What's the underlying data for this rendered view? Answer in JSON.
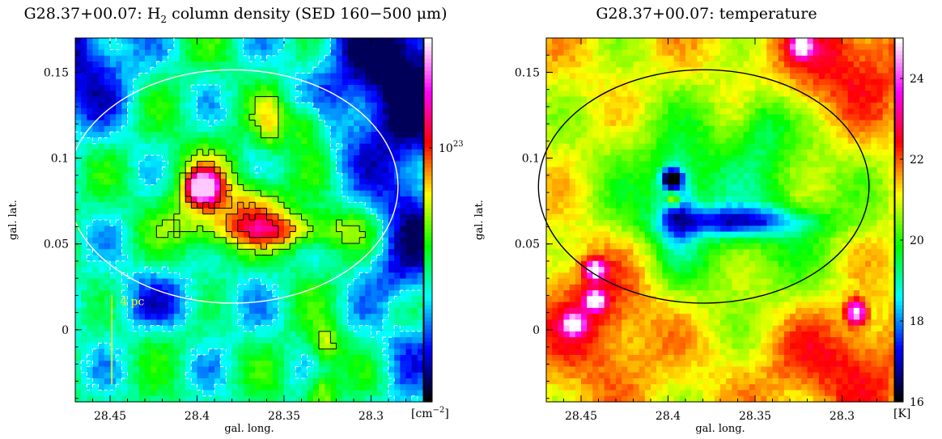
{
  "chart_data": [
    {
      "type": "heatmap",
      "title_prefix": "G28.37+00.07: H",
      "title_sub": "2",
      "title_suffix": " column density (SED 160−500 μm)",
      "xlabel": "gal. long.",
      "ylabel": "gal. lat.",
      "xlim": [
        28.47,
        28.27
      ],
      "ylim": [
        -0.042,
        0.17
      ],
      "x_ticks": [
        "28.45",
        "28.4",
        "28.35",
        "28.3"
      ],
      "x_tick_values": [
        28.45,
        28.4,
        28.35,
        28.3
      ],
      "y_ticks": [
        "0",
        "0.05",
        "0.1",
        "0.15"
      ],
      "y_tick_values": [
        0,
        0.05,
        0.1,
        0.15
      ],
      "colorbar": {
        "scale": "log",
        "tick_label_base": "10",
        "tick_label_exp": "23",
        "tick_value": 1e+23,
        "unit_prefix": "[cm",
        "unit_exp": "−2",
        "unit_suffix": "]",
        "colors": [
          "#000000",
          "#0000ff",
          "#00ffff",
          "#00ff00",
          "#ffff00",
          "#ff0000",
          "#ff00ff",
          "#ffffff"
        ]
      },
      "ellipse": {
        "center": [
          28.3795,
          0.0835
        ],
        "semi_axis_long": 0.095,
        "semi_axis_lat": 0.068,
        "color": "#ffffff"
      },
      "scale_bar": {
        "label": "4 pc",
        "long": 28.449,
        "lat_start": -0.032,
        "lat_end": 0.02,
        "color": "#ffff00"
      },
      "features": [
        {
          "name": "main-clump",
          "long": 28.397,
          "lat": 0.083,
          "peak": "high"
        },
        {
          "name": "elongated-filament",
          "long": 28.345,
          "lat": 0.057,
          "peak": "medium"
        },
        {
          "name": "north-clump",
          "long": 28.337,
          "lat": 0.12,
          "peak": "medium"
        },
        {
          "name": "south-clump",
          "long": 28.326,
          "lat": -0.009,
          "peak": "medium"
        }
      ]
    },
    {
      "type": "heatmap",
      "title": "G28.37+00.07: temperature",
      "xlabel": "gal. long.",
      "ylabel": "gal. lat.",
      "xlim": [
        28.47,
        28.27
      ],
      "ylim": [
        -0.042,
        0.17
      ],
      "x_ticks": [
        "28.45",
        "28.4",
        "28.35",
        "28.3"
      ],
      "x_tick_values": [
        28.45,
        28.4,
        28.35,
        28.3
      ],
      "y_ticks": [
        "0",
        "0.05",
        "0.1",
        "0.15"
      ],
      "y_tick_values": [
        0,
        0.05,
        0.1,
        0.15
      ],
      "colorbar": {
        "unit": "[K]",
        "range": [
          16,
          25
        ],
        "tick_labels": [
          "16",
          "18",
          "20",
          "22",
          "24"
        ],
        "tick_values": [
          16,
          18,
          20,
          22,
          24
        ],
        "colors": [
          "#000000",
          "#0000ff",
          "#00ffff",
          "#00ff00",
          "#ffff00",
          "#ff0000",
          "#ff00ff",
          "#ffffff"
        ]
      },
      "ellipse": {
        "center": [
          28.3795,
          0.0835
        ],
        "semi_axis_long": 0.095,
        "semi_axis_lat": 0.068,
        "color": "#000000"
      },
      "features": [
        {
          "name": "cold-filament",
          "long": 28.36,
          "lat": 0.065,
          "temperature_K": 17
        },
        {
          "name": "hot-spot-sw",
          "long": 28.445,
          "lat": 0.015,
          "temperature_K": 25
        },
        {
          "name": "hot-spot-se",
          "long": 28.292,
          "lat": 0.01,
          "temperature_K": 25
        },
        {
          "name": "hot-spot-ne",
          "long": 28.323,
          "lat": 0.165,
          "temperature_K": 25
        }
      ]
    }
  ]
}
